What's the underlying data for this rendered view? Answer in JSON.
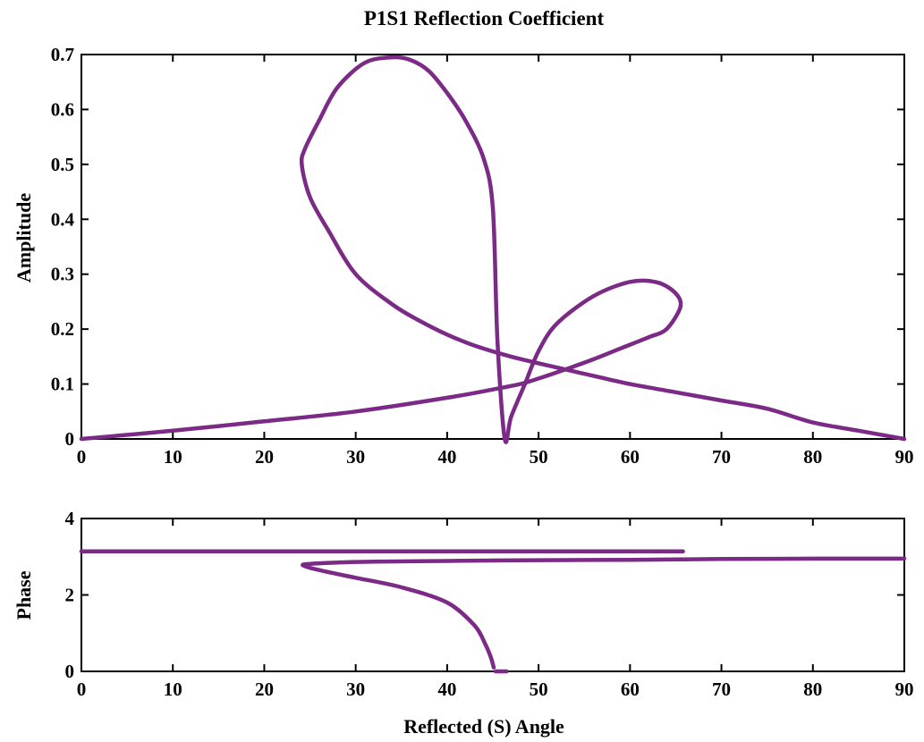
{
  "chart_data": [
    {
      "type": "line",
      "title": "P1S1 Reflection Coefficient",
      "xlabel": "",
      "ylabel": "Amplitude",
      "xlim": [
        0,
        90
      ],
      "ylim": [
        0,
        0.7
      ],
      "xticks": [
        "0",
        "10",
        "20",
        "30",
        "40",
        "50",
        "60",
        "70",
        "80",
        "90"
      ],
      "yticks": [
        "0",
        "0.1",
        "0.2",
        "0.3",
        "0.4",
        "0.5",
        "0.6",
        "0.7"
      ],
      "grid": false,
      "color": "#7b2a86",
      "series": [
        {
          "x": [
            0,
            10,
            20,
            30,
            40,
            45,
            48,
            50,
            53,
            56,
            59,
            62,
            64,
            65.5,
            65,
            63,
            60,
            56,
            52,
            50,
            48.5,
            47,
            46.3,
            45.5,
            45,
            44,
            42,
            40,
            38,
            36,
            34,
            31,
            28,
            26,
            24.5,
            24.1,
            25,
            27,
            30,
            34,
            37,
            40,
            43,
            47,
            52,
            56,
            60,
            65,
            70,
            75,
            80,
            85,
            90
          ],
          "y": [
            0,
            0.015,
            0.032,
            0.05,
            0.075,
            0.09,
            0.1,
            0.11,
            0.127,
            0.145,
            0.165,
            0.185,
            0.2,
            0.24,
            0.265,
            0.285,
            0.286,
            0.26,
            0.21,
            0.16,
            0.1,
            0.04,
            0,
            0.18,
            0.42,
            0.51,
            0.58,
            0.63,
            0.67,
            0.69,
            0.695,
            0.685,
            0.64,
            0.58,
            0.53,
            0.5,
            0.44,
            0.38,
            0.3,
            0.245,
            0.215,
            0.19,
            0.17,
            0.15,
            0.13,
            0.115,
            0.1,
            0.085,
            0.07,
            0.055,
            0.03,
            0.015,
            0
          ]
        }
      ]
    },
    {
      "type": "line",
      "title": "",
      "xlabel": "Reflected (S) Angle",
      "ylabel": "Phase",
      "xlim": [
        0,
        90
      ],
      "ylim": [
        0,
        4
      ],
      "xticks": [
        "0",
        "10",
        "20",
        "30",
        "40",
        "50",
        "60",
        "70",
        "80",
        "90"
      ],
      "yticks": [
        "0",
        "2",
        "4"
      ],
      "grid": false,
      "color": "#7b2a86",
      "series": [
        {
          "x": [
            0,
            20,
            40,
            60,
            65.8
          ],
          "y": [
            3.14,
            3.14,
            3.14,
            3.14,
            3.14
          ]
        },
        {
          "x": [
            90,
            80,
            70,
            60,
            50,
            40,
            32,
            28,
            25.5,
            24.2,
            26,
            30,
            35,
            40,
            43,
            44.2,
            44.8,
            45.1
          ],
          "y": [
            2.95,
            2.95,
            2.94,
            2.92,
            2.91,
            2.89,
            2.87,
            2.85,
            2.82,
            2.78,
            2.65,
            2.45,
            2.2,
            1.8,
            1.2,
            0.7,
            0.35,
            0.1
          ]
        },
        {
          "x": [
            45.3,
            46.5
          ],
          "y": [
            0,
            0
          ]
        }
      ]
    }
  ]
}
